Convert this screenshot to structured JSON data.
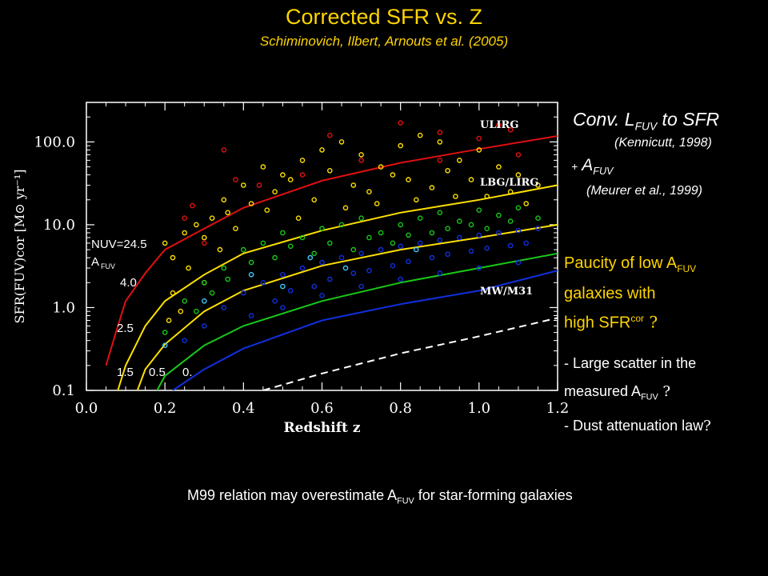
{
  "header": {
    "title": "Corrected SFR vs. Z",
    "subtitle": "Schiminovich, Ilbert, Arnouts et al. (2005)"
  },
  "side_notes": {
    "conv_prefix": "Conv. L",
    "conv_sub": "FUV",
    "conv_suffix": " to SFR",
    "kennicutt": "(Kennicutt, 1998)",
    "plus": "+",
    "afuv_main": "A",
    "afuv_sub": "FUV",
    "meurer": "(Meurer et al., 1999)",
    "paucity_line1a": "Paucity of low A",
    "paucity_line1sub": "FUV",
    "paucity_line2": "galaxies with",
    "paucity_line3a": " high SFR",
    "paucity_line3sup": "cor",
    "paucity_q": " ?",
    "bullet1": "- Large scatter in the",
    "bullet2a": "measured  A",
    "bullet2sub": "FUV",
    "bullet2q": " ?",
    "bullet3": "- Dust attenuation law",
    "bullet3q": "?"
  },
  "footer": {
    "text_a": "M99 relation may overestimate A",
    "text_sub": "FUV",
    "text_b": " for star-forming galaxies"
  },
  "colors": {
    "background": "#000000",
    "title": "#ffd400",
    "red": "#e01010",
    "yellow": "#ffe000",
    "green": "#18c818",
    "blue": "#1030e0",
    "cyan": "#40c8ff",
    "white": "#ffffff"
  },
  "chart_data": {
    "type": "scatter",
    "xlabel": "Redshift z",
    "ylabel": "SFR(FUV)cor [M⊙ yr⁻¹]",
    "x_ticks": [
      "0.0",
      "0.2",
      "0.4",
      "0.6",
      "0.8",
      "1.0",
      "1.2"
    ],
    "y_ticks": [
      "0.1",
      "1.0",
      "10.0",
      "100.0"
    ],
    "xlim": [
      0.0,
      1.2
    ],
    "ylim": [
      0.1,
      300
    ],
    "y_scale": "log",
    "in_plot_labels": {
      "nuv": "NUV=24.5",
      "afuv": "A",
      "afuv_sub": "FUV",
      "a40": "4.0",
      "a25": "2.5",
      "a15": "1.5",
      "a05": "0.5",
      "a0": "0."
    },
    "region_labels": [
      "ULIRG",
      "LBG/LIRG",
      "MW/M31"
    ],
    "curves": [
      {
        "name": "4.0",
        "color": "red",
        "style": "solid",
        "points": [
          [
            0.05,
            0.2
          ],
          [
            0.08,
            0.6
          ],
          [
            0.1,
            1.2
          ],
          [
            0.15,
            2.6
          ],
          [
            0.2,
            5
          ],
          [
            0.3,
            9
          ],
          [
            0.4,
            16
          ],
          [
            0.6,
            34
          ],
          [
            0.8,
            56
          ],
          [
            1.0,
            82
          ],
          [
            1.2,
            118
          ]
        ]
      },
      {
        "name": "2.5",
        "color": "yellow",
        "style": "solid",
        "points": [
          [
            0.08,
            0.1
          ],
          [
            0.1,
            0.2
          ],
          [
            0.15,
            0.6
          ],
          [
            0.2,
            1.2
          ],
          [
            0.3,
            2.5
          ],
          [
            0.4,
            4.5
          ],
          [
            0.6,
            8.5
          ],
          [
            0.8,
            14
          ],
          [
            1.0,
            20
          ],
          [
            1.2,
            30
          ]
        ]
      },
      {
        "name": "1.5",
        "color": "yellow",
        "style": "solid",
        "points": [
          [
            0.13,
            0.1
          ],
          [
            0.15,
            0.18
          ],
          [
            0.2,
            0.36
          ],
          [
            0.3,
            0.9
          ],
          [
            0.4,
            1.6
          ],
          [
            0.6,
            3.2
          ],
          [
            0.8,
            5
          ],
          [
            1.0,
            7
          ],
          [
            1.2,
            10
          ]
        ]
      },
      {
        "name": "0.5",
        "color": "green",
        "style": "solid",
        "points": [
          [
            0.18,
            0.1
          ],
          [
            0.2,
            0.15
          ],
          [
            0.3,
            0.35
          ],
          [
            0.4,
            0.6
          ],
          [
            0.6,
            1.2
          ],
          [
            0.8,
            2
          ],
          [
            1.0,
            3
          ],
          [
            1.2,
            4.5
          ]
        ]
      },
      {
        "name": "0",
        "color": "blue",
        "style": "solid",
        "points": [
          [
            0.22,
            0.1
          ],
          [
            0.3,
            0.18
          ],
          [
            0.4,
            0.32
          ],
          [
            0.6,
            0.7
          ],
          [
            0.8,
            1.1
          ],
          [
            1.0,
            1.6
          ],
          [
            1.2,
            2.8
          ]
        ]
      },
      {
        "name": "NUV=24.5",
        "color": "white",
        "style": "dashed",
        "points": [
          [
            0.45,
            0.1
          ],
          [
            0.6,
            0.16
          ],
          [
            0.8,
            0.28
          ],
          [
            1.0,
            0.45
          ],
          [
            1.2,
            0.75
          ]
        ]
      }
    ],
    "scatter_series": [
      {
        "name": "red",
        "color": "red",
        "points": [
          [
            0.27,
            17
          ],
          [
            0.35,
            80
          ],
          [
            0.62,
            120
          ],
          [
            0.8,
            170
          ],
          [
            0.9,
            130
          ],
          [
            1.0,
            110
          ],
          [
            1.05,
            160
          ],
          [
            1.08,
            140
          ],
          [
            0.55,
            40
          ],
          [
            0.7,
            60
          ],
          [
            0.9,
            60
          ],
          [
            1.1,
            70
          ],
          [
            0.38,
            35
          ],
          [
            0.44,
            30
          ],
          [
            0.25,
            12
          ],
          [
            0.3,
            6
          ]
        ]
      },
      {
        "name": "yellow",
        "color": "yellow",
        "points": [
          [
            0.2,
            6
          ],
          [
            0.22,
            4
          ],
          [
            0.25,
            8
          ],
          [
            0.28,
            10
          ],
          [
            0.3,
            7
          ],
          [
            0.32,
            12
          ],
          [
            0.35,
            20
          ],
          [
            0.4,
            30
          ],
          [
            0.45,
            50
          ],
          [
            0.5,
            40
          ],
          [
            0.55,
            60
          ],
          [
            0.6,
            80
          ],
          [
            0.65,
            100
          ],
          [
            0.7,
            70
          ],
          [
            0.75,
            50
          ],
          [
            0.8,
            90
          ],
          [
            0.85,
            120
          ],
          [
            0.9,
            100
          ],
          [
            0.95,
            60
          ],
          [
            1.0,
            80
          ],
          [
            1.05,
            50
          ],
          [
            1.1,
            40
          ],
          [
            1.15,
            30
          ],
          [
            0.48,
            25
          ],
          [
            0.52,
            35
          ],
          [
            0.58,
            20
          ],
          [
            0.62,
            45
          ],
          [
            0.68,
            30
          ],
          [
            0.72,
            25
          ],
          [
            0.78,
            40
          ],
          [
            0.82,
            35
          ],
          [
            0.88,
            28
          ],
          [
            0.92,
            45
          ],
          [
            0.98,
            35
          ],
          [
            1.02,
            22
          ],
          [
            1.08,
            25
          ],
          [
            0.42,
            18
          ],
          [
            0.36,
            14
          ],
          [
            0.26,
            3
          ],
          [
            0.22,
            1.5
          ],
          [
            0.21,
            0.7
          ],
          [
            0.24,
            0.9
          ],
          [
            0.3,
            2
          ],
          [
            0.34,
            5
          ],
          [
            0.38,
            9
          ],
          [
            0.46,
            15
          ],
          [
            0.54,
            12
          ],
          [
            0.66,
            16
          ],
          [
            0.74,
            18
          ],
          [
            0.84,
            20
          ],
          [
            0.94,
            22
          ],
          [
            1.12,
            18
          ]
        ]
      },
      {
        "name": "green",
        "color": "green",
        "points": [
          [
            0.2,
            0.5
          ],
          [
            0.25,
            1.2
          ],
          [
            0.3,
            2
          ],
          [
            0.35,
            3
          ],
          [
            0.4,
            5
          ],
          [
            0.45,
            6
          ],
          [
            0.5,
            8
          ],
          [
            0.55,
            7
          ],
          [
            0.6,
            9
          ],
          [
            0.65,
            10
          ],
          [
            0.7,
            12
          ],
          [
            0.75,
            8
          ],
          [
            0.8,
            10
          ],
          [
            0.85,
            12
          ],
          [
            0.9,
            14
          ],
          [
            0.95,
            11
          ],
          [
            1.0,
            15
          ],
          [
            1.05,
            13
          ],
          [
            1.1,
            16
          ],
          [
            1.15,
            12
          ],
          [
            0.42,
            3.5
          ],
          [
            0.48,
            4
          ],
          [
            0.52,
            5.5
          ],
          [
            0.58,
            4.5
          ],
          [
            0.62,
            6
          ],
          [
            0.68,
            5
          ],
          [
            0.72,
            7
          ],
          [
            0.78,
            6
          ],
          [
            0.82,
            7.5
          ],
          [
            0.88,
            8
          ],
          [
            0.92,
            9
          ],
          [
            0.98,
            10
          ],
          [
            1.02,
            9
          ],
          [
            1.08,
            11
          ],
          [
            0.32,
            1.5
          ],
          [
            0.28,
            0.9
          ],
          [
            0.36,
            2.2
          ]
        ]
      },
      {
        "name": "blue",
        "color": "blue",
        "points": [
          [
            0.25,
            0.4
          ],
          [
            0.3,
            0.6
          ],
          [
            0.35,
            1
          ],
          [
            0.4,
            1.5
          ],
          [
            0.45,
            2
          ],
          [
            0.5,
            2.5
          ],
          [
            0.55,
            3
          ],
          [
            0.6,
            3.5
          ],
          [
            0.65,
            4
          ],
          [
            0.7,
            4.5
          ],
          [
            0.75,
            5
          ],
          [
            0.8,
            5.5
          ],
          [
            0.85,
            6
          ],
          [
            0.9,
            6.5
          ],
          [
            0.95,
            7
          ],
          [
            1.0,
            7.5
          ],
          [
            1.05,
            8
          ],
          [
            1.1,
            8.5
          ],
          [
            1.15,
            9
          ],
          [
            0.42,
            0.8
          ],
          [
            0.48,
            1.2
          ],
          [
            0.52,
            1.6
          ],
          [
            0.58,
            1.8
          ],
          [
            0.62,
            2.2
          ],
          [
            0.68,
            2.6
          ],
          [
            0.72,
            2.8
          ],
          [
            0.78,
            3.2
          ],
          [
            0.82,
            3.6
          ],
          [
            0.88,
            4
          ],
          [
            0.92,
            4.4
          ],
          [
            0.98,
            4.8
          ],
          [
            1.02,
            5.2
          ],
          [
            1.08,
            5.6
          ],
          [
            1.12,
            6
          ],
          [
            0.5,
            1
          ],
          [
            0.6,
            1.4
          ],
          [
            0.7,
            1.8
          ],
          [
            0.8,
            2.2
          ],
          [
            0.9,
            2.6
          ],
          [
            1.0,
            3
          ],
          [
            1.1,
            3.5
          ]
        ]
      },
      {
        "name": "cyan",
        "color": "cyan",
        "points": [
          [
            0.3,
            1.2
          ],
          [
            0.42,
            2.5
          ],
          [
            0.57,
            4
          ],
          [
            0.66,
            3
          ],
          [
            0.84,
            5
          ],
          [
            0.2,
            0.35
          ],
          [
            0.5,
            1.8
          ]
        ]
      }
    ]
  }
}
